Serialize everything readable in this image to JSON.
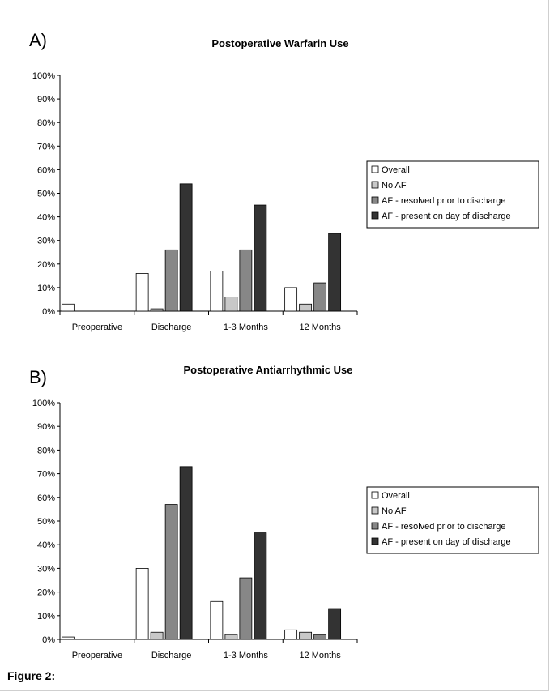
{
  "figure_caption": "Figure 2:",
  "legend": [
    {
      "label": "Overall",
      "color": "#ffffff"
    },
    {
      "label": "No AF",
      "color": "#c8c8c8"
    },
    {
      "label": "AF - resolved prior to discharge",
      "color": "#878787"
    },
    {
      "label": "AF - present on day of discharge",
      "color": "#333333"
    }
  ],
  "chart_data": [
    {
      "type": "bar",
      "panel_label": "A)",
      "title": "Postoperative Warfarin Use",
      "categories": [
        "Preoperative",
        "Discharge",
        "1-3 Months",
        "12 Months"
      ],
      "ylim": [
        0,
        100
      ],
      "yticks": [
        "0%",
        "10%",
        "20%",
        "30%",
        "40%",
        "50%",
        "60%",
        "70%",
        "80%",
        "90%",
        "100%"
      ],
      "series": [
        {
          "name": "Overall",
          "values": [
            3,
            16,
            17,
            10
          ]
        },
        {
          "name": "No AF",
          "values": [
            0,
            1,
            6,
            3
          ]
        },
        {
          "name": "AF - resolved prior to discharge",
          "values": [
            0,
            26,
            26,
            12
          ]
        },
        {
          "name": "AF - present on day of discharge",
          "values": [
            0,
            54,
            45,
            33
          ]
        }
      ]
    },
    {
      "type": "bar",
      "panel_label": "B)",
      "title": "Postoperative Antiarrhythmic Use",
      "categories": [
        "Preoperative",
        "Discharge",
        "1-3 Months",
        "12 Months"
      ],
      "ylim": [
        0,
        100
      ],
      "yticks": [
        "0%",
        "10%",
        "20%",
        "30%",
        "40%",
        "50%",
        "60%",
        "70%",
        "80%",
        "90%",
        "100%"
      ],
      "series": [
        {
          "name": "Overall",
          "values": [
            1,
            30,
            16,
            4
          ]
        },
        {
          "name": "No AF",
          "values": [
            0,
            3,
            2,
            3
          ]
        },
        {
          "name": "AF - resolved prior to discharge",
          "values": [
            0,
            57,
            26,
            2
          ]
        },
        {
          "name": "AF - present on day of discharge",
          "values": [
            0,
            73,
            45,
            13
          ]
        }
      ]
    }
  ]
}
